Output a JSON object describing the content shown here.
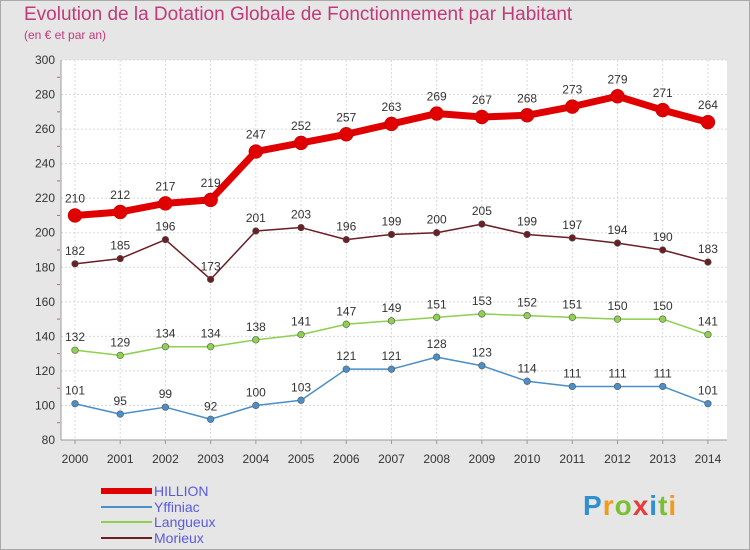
{
  "title": "Evolution de la Dotation Globale de Fonctionnement par Habitant",
  "subtitle": "(en € et par an)",
  "logo": {
    "text": "Proxiti"
  },
  "chart_data": {
    "type": "line",
    "title": "Evolution de la Dotation Globale de Fonctionnement par Habitant",
    "subtitle": "(en € et par an)",
    "xlabel": "",
    "ylabel": "",
    "x": [
      "2000",
      "2001",
      "2002",
      "2003",
      "2004",
      "2005",
      "2006",
      "2007",
      "2008",
      "2009",
      "2010",
      "2011",
      "2012",
      "2013",
      "2014"
    ],
    "ylim": [
      80,
      300
    ],
    "yticks": [
      80,
      100,
      120,
      140,
      160,
      180,
      200,
      220,
      240,
      260,
      280,
      300
    ],
    "grid": true,
    "legend_position": "bottom-left",
    "series": [
      {
        "name": "HILLION",
        "color": "#e00000",
        "values": [
          210,
          212,
          217,
          219,
          247,
          252,
          257,
          263,
          269,
          267,
          268,
          273,
          279,
          271,
          264
        ]
      },
      {
        "name": "Yffiniac",
        "color": "#4a8fc8",
        "values": [
          101,
          95,
          99,
          92,
          100,
          103,
          121,
          121,
          128,
          123,
          114,
          111,
          111,
          111,
          101
        ]
      },
      {
        "name": "Langueux",
        "color": "#8ed14f",
        "values": [
          132,
          129,
          134,
          134,
          138,
          141,
          147,
          149,
          151,
          153,
          152,
          151,
          150,
          150,
          141
        ]
      },
      {
        "name": "Morieux",
        "color": "#6b1f25",
        "values": [
          182,
          185,
          196,
          173,
          201,
          203,
          196,
          199,
          200,
          205,
          199,
          197,
          194,
          190,
          183
        ]
      }
    ]
  }
}
